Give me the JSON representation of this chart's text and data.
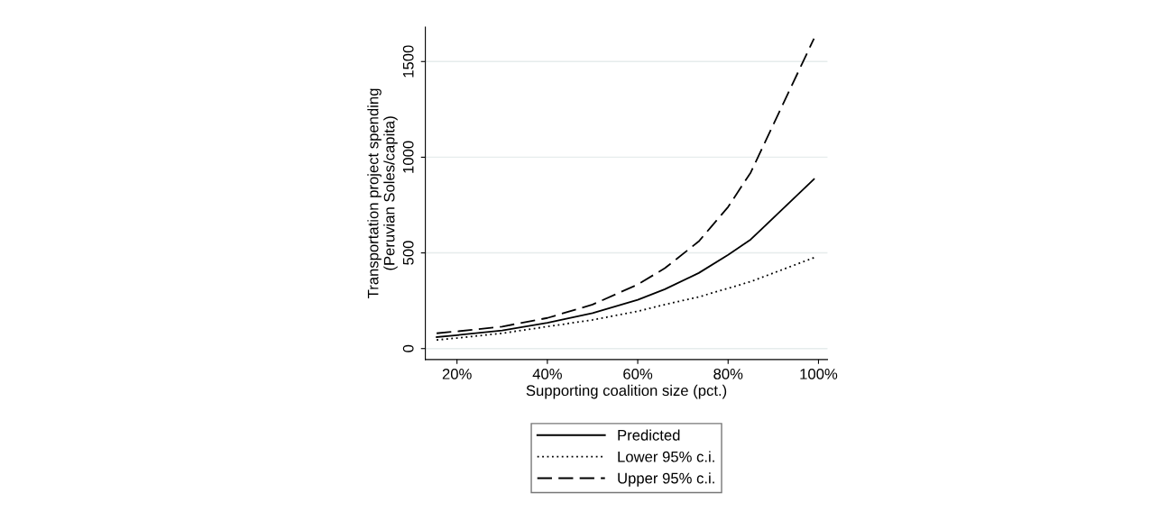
{
  "chart_data": {
    "type": "line",
    "xlabel": "Supporting coalition size (pct.)",
    "ylabel": "Transportation project spending\n(Peruvian Soles/capita)",
    "xlim": [
      13,
      102
    ],
    "ylim": [
      -57,
      1680
    ],
    "xticks": [
      {
        "value": 20,
        "label": "20%"
      },
      {
        "value": 40,
        "label": "40%"
      },
      {
        "value": 60,
        "label": "60%"
      },
      {
        "value": 80,
        "label": "80%"
      },
      {
        "value": 100,
        "label": "100%"
      }
    ],
    "yticks": [
      0,
      500,
      1000,
      1500
    ],
    "grid": "y",
    "legend": "bottom",
    "x": [
      15.5,
      20,
      30,
      40,
      50,
      60,
      66,
      73.5,
      80,
      85,
      99
    ],
    "series": [
      {
        "name": "Predicted",
        "color": "#000000",
        "line_style": "solid",
        "values": [
          60,
          70,
          95,
          135,
          185,
          255,
          310,
          395,
          490,
          570,
          885
        ]
      },
      {
        "name": "Lower 95% c.i.",
        "color": "#000000",
        "line_style": "dotted",
        "values": [
          45,
          55,
          80,
          115,
          150,
          195,
          230,
          270,
          315,
          350,
          475
        ]
      },
      {
        "name": "Upper 95% c.i.",
        "color": "#000000",
        "line_style": "dashed",
        "values": [
          80,
          90,
          115,
          160,
          230,
          335,
          420,
          560,
          740,
          920,
          1620
        ]
      }
    ]
  }
}
